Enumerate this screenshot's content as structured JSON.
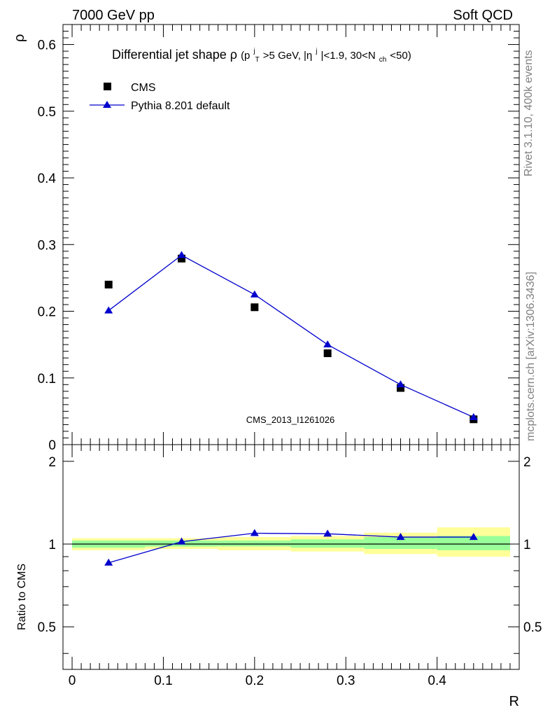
{
  "header": {
    "left": "7000 GeV pp",
    "right": "Soft QCD"
  },
  "side": {
    "rivet": "Rivet 3.1.10,  400k events",
    "source": "mcplots.cern.ch [arXiv:1306.3436]"
  },
  "chart_data": {
    "type": "scatter",
    "title": "Differential jet shape ρ (p_T^j > 5 GeV, |η^j| < 1.9, 30 < N_ch < 50)",
    "title_parts": {
      "main": "Differential jet shape",
      "rho": "ρ",
      "open": " (p",
      "sup1": "j",
      "sub1": "T",
      "mid1": ">5 GeV, |η",
      "sup2": "j",
      "mid2": "|<1.9, 30<N",
      "sub2": "ch",
      "close": "<50)"
    },
    "watermark": "CMS_2013_I1261026",
    "xlabel": "R",
    "ylabel": "ρ",
    "ratio_ylabel": "Ratio to CMS",
    "xlim": [
      -0.01,
      0.49
    ],
    "ylim": [
      0,
      0.63
    ],
    "ratio_ylim": [
      0.35,
      2.3
    ],
    "xticks": [
      "0",
      "0.1",
      "0.2",
      "0.3",
      "0.4"
    ],
    "xtick_values": [
      0,
      0.1,
      0.2,
      0.3,
      0.4
    ],
    "yticks": [
      "0.1",
      "0.2",
      "0.3",
      "0.4",
      "0.5",
      "0.6"
    ],
    "ytick_values": [
      0.1,
      0.2,
      0.3,
      0.4,
      0.5,
      0.6
    ],
    "ytick_zero_label": "0",
    "ratio_yticks": [
      "0.5",
      "1",
      "2"
    ],
    "ratio_ytick_values": [
      0.5,
      1,
      2
    ],
    "legend_position": "top-left",
    "series": [
      {
        "name": "CMS",
        "marker": "square",
        "color": "#000000",
        "x": [
          0.04,
          0.12,
          0.2,
          0.28,
          0.36,
          0.44
        ],
        "y": [
          0.24,
          0.279,
          0.206,
          0.137,
          0.085,
          0.038
        ]
      },
      {
        "name": "Pythia 8.201 default",
        "marker": "triangle",
        "color": "#0000cc",
        "x": [
          0.04,
          0.12,
          0.2,
          0.28,
          0.36,
          0.44
        ],
        "y": [
          0.201,
          0.284,
          0.225,
          0.15,
          0.09,
          0.041
        ]
      }
    ],
    "ratio": {
      "x": [
        0.04,
        0.12,
        0.2,
        0.28,
        0.36,
        0.44
      ],
      "values": [
        0.855,
        1.02,
        1.095,
        1.09,
        1.06,
        1.06
      ],
      "bins": [
        {
          "lo": 0.0,
          "hi": 0.08,
          "green": [
            0.97,
            1.03
          ],
          "yellow": [
            0.95,
            1.05
          ]
        },
        {
          "lo": 0.08,
          "hi": 0.16,
          "green": [
            0.98,
            1.03
          ],
          "yellow": [
            0.96,
            1.05
          ]
        },
        {
          "lo": 0.16,
          "hi": 0.24,
          "green": [
            0.98,
            1.03
          ],
          "yellow": [
            0.95,
            1.06
          ]
        },
        {
          "lo": 0.24,
          "hi": 0.32,
          "green": [
            0.97,
            1.04
          ],
          "yellow": [
            0.94,
            1.07
          ]
        },
        {
          "lo": 0.32,
          "hi": 0.4,
          "green": [
            0.96,
            1.06
          ],
          "yellow": [
            0.92,
            1.1
          ]
        },
        {
          "lo": 0.4,
          "hi": 0.48,
          "green": [
            0.95,
            1.07
          ],
          "yellow": [
            0.9,
            1.15
          ]
        }
      ],
      "green_color": "#99ff99",
      "yellow_color": "#ffff99"
    }
  }
}
